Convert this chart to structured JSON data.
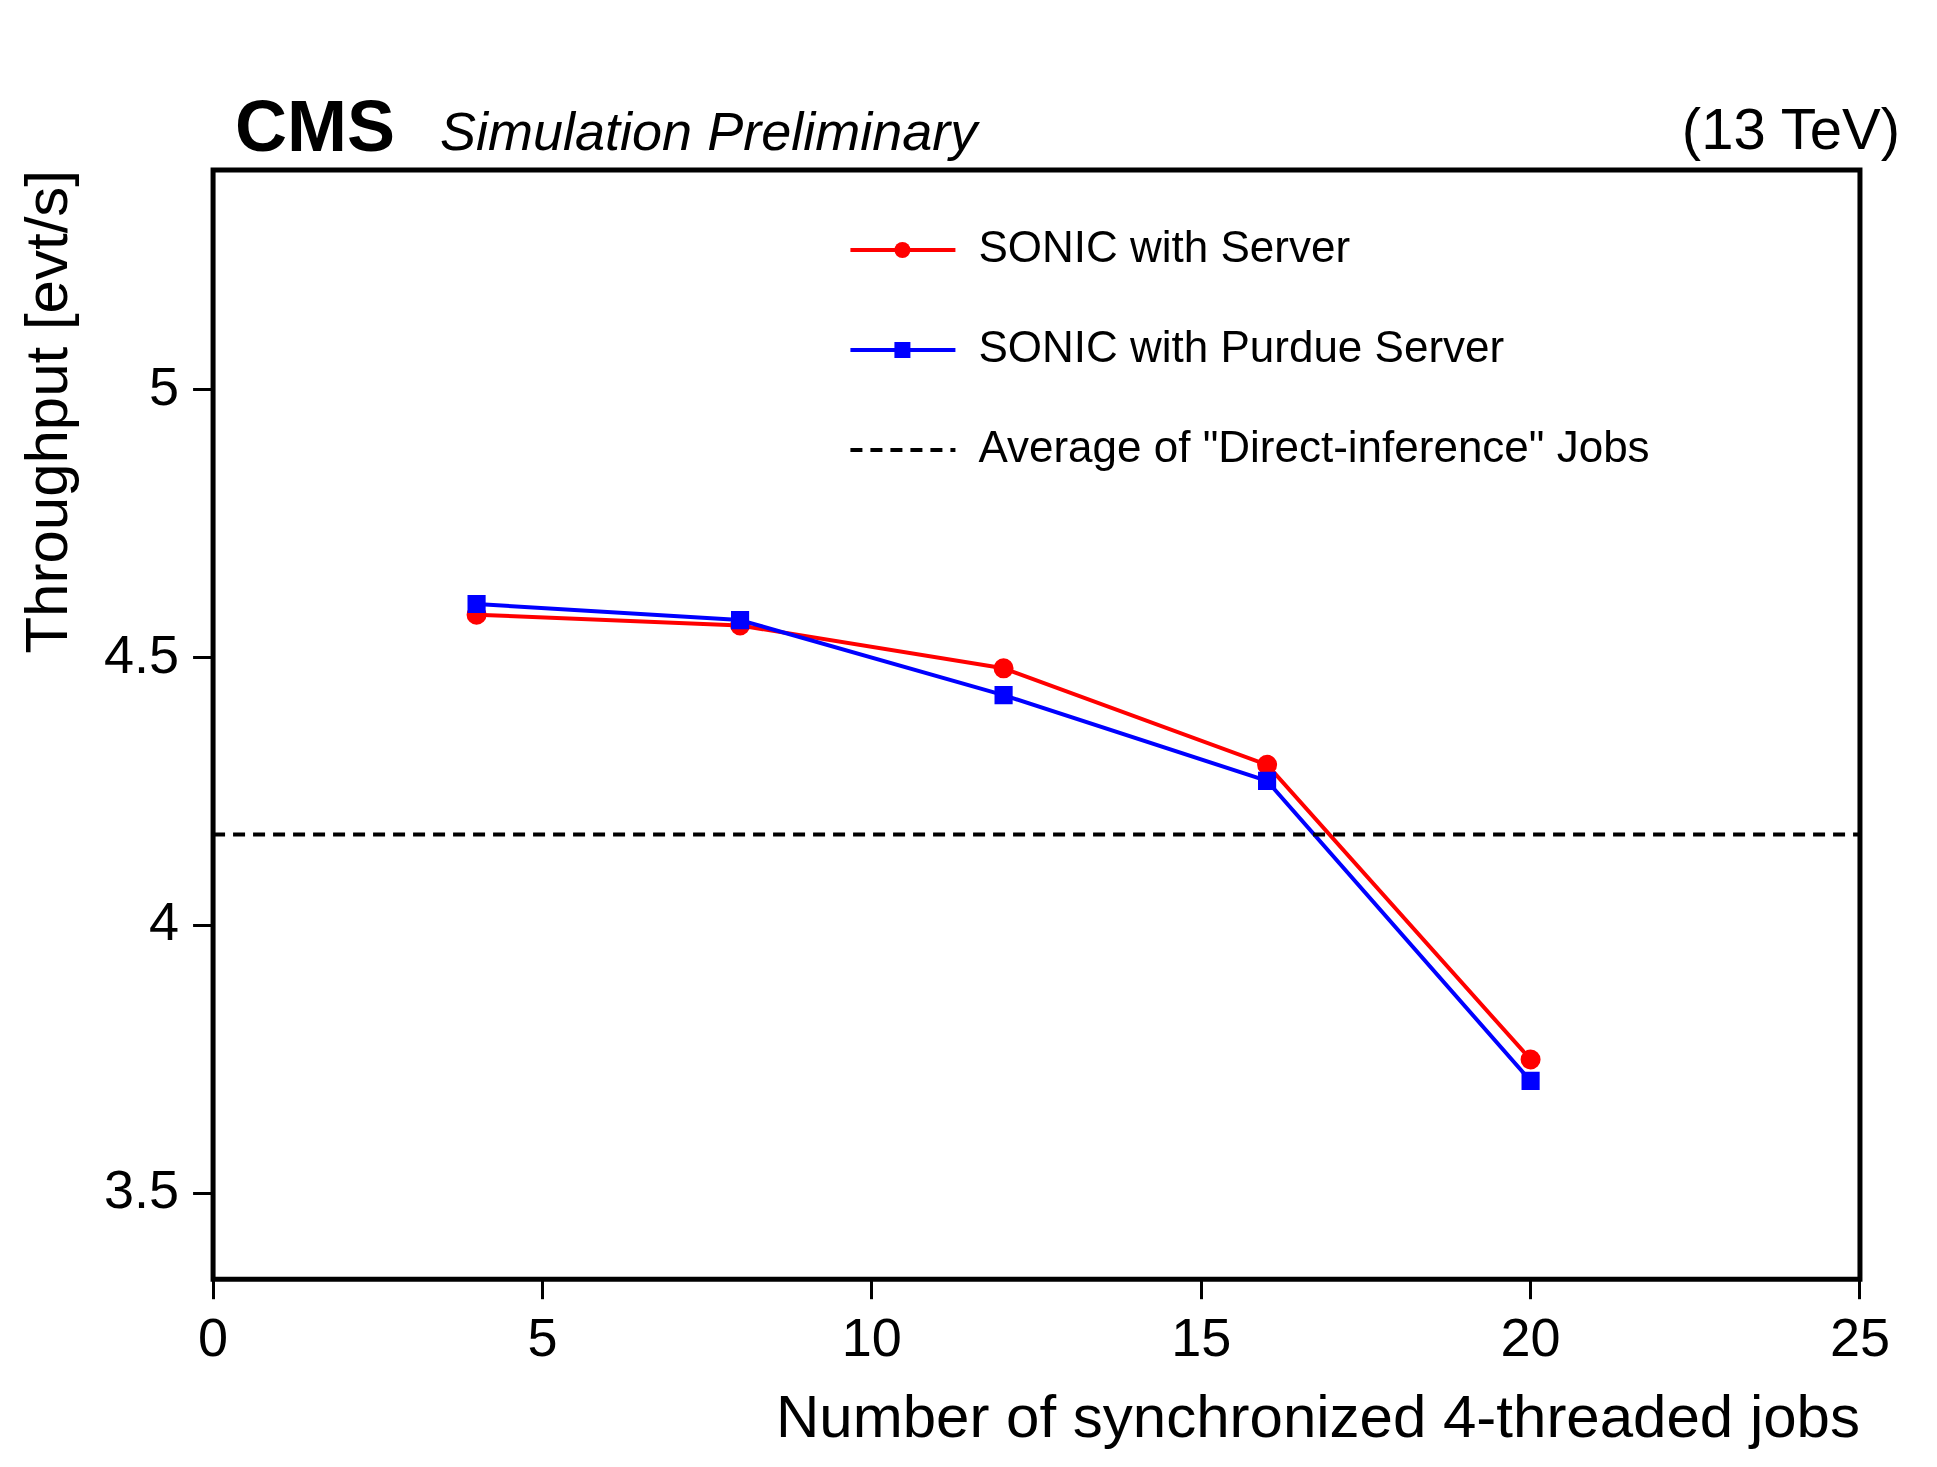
{
  "chart_data": {
    "type": "line",
    "title": "CMS",
    "subtitle": "Simulation Preliminary",
    "annotations": [
      "(13 TeV)"
    ],
    "xlabel": "Number of synchronized 4-threaded jobs",
    "ylabel": "Throughput [evt/s]",
    "x": [
      4,
      8,
      12,
      16,
      20
    ],
    "series": [
      {
        "name": "SONIC with Server",
        "color": "#ff0000",
        "marker": "circle",
        "values": [
          4.58,
          4.56,
          4.48,
          4.3,
          3.75
        ]
      },
      {
        "name": "SONIC with Purdue Server",
        "color": "#0000ff",
        "marker": "square",
        "values": [
          4.6,
          4.57,
          4.43,
          4.27,
          3.71
        ]
      }
    ],
    "ref_lines": [
      {
        "axis": "y",
        "value": 4.17,
        "label": "Average of \"Direct-inference\" Jobs",
        "color": "#000000",
        "line_style": "dashed"
      }
    ],
    "xlim": [
      0,
      25
    ],
    "ylim": [
      3.34,
      5.41
    ],
    "xticks": [
      0,
      5,
      10,
      15,
      20,
      25
    ],
    "yticks": [
      3.5,
      4,
      4.5,
      5
    ],
    "grid": false,
    "legend": "top right"
  }
}
